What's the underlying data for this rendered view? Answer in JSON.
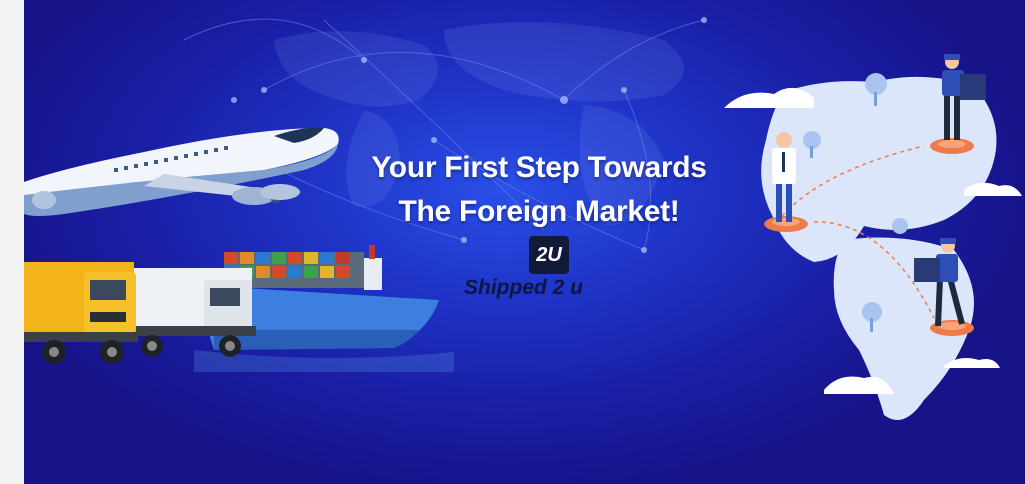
{
  "banner": {
    "headline_line1": "Your First Step Towards",
    "headline_line2": "The Foreign Market!",
    "logo_text": "2U",
    "brand_name": "Shipped 2 u"
  },
  "colors": {
    "background": "#1f35c8",
    "headline": "#ffffff",
    "brand": "#0e1540",
    "map": "#dbe6fb",
    "accent": "#f07a4a"
  }
}
